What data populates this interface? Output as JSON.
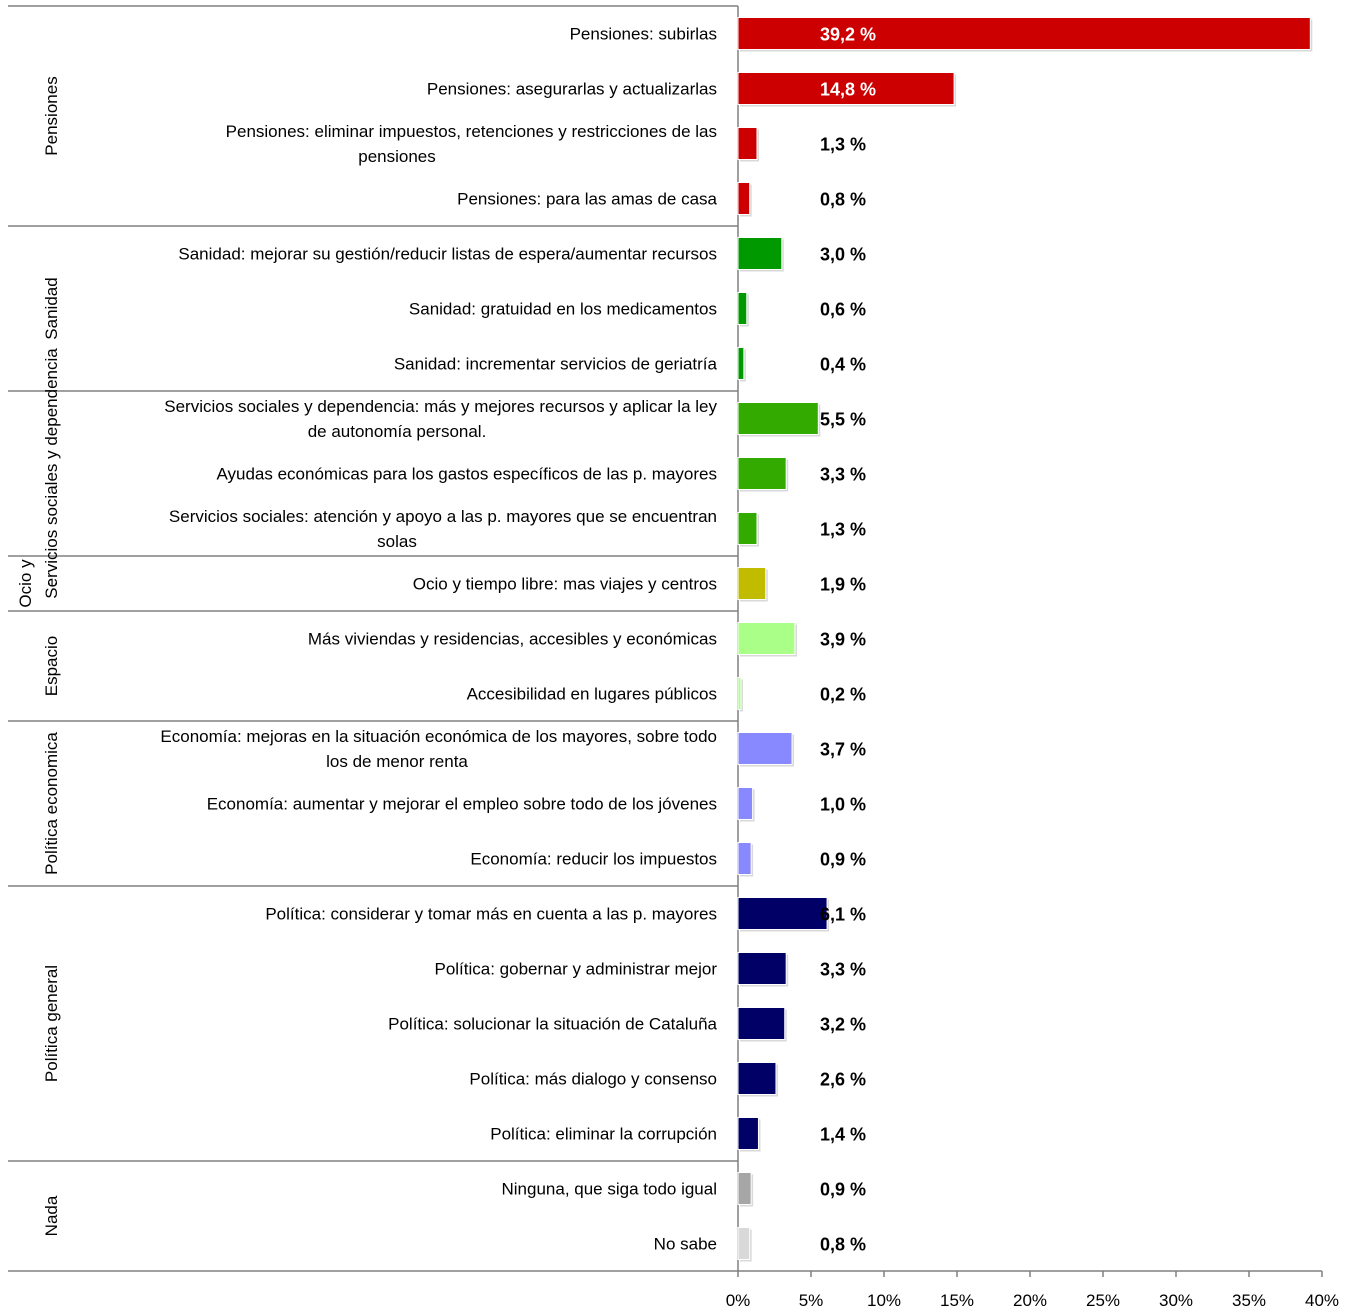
{
  "chart_data": {
    "type": "bar",
    "orientation": "horizontal",
    "xlim": [
      0,
      40
    ],
    "x_ticks": [
      "0%",
      "5%",
      "10%",
      "15%",
      "20%",
      "25%",
      "30%",
      "35%",
      "40%"
    ],
    "grid": false,
    "legend": "none",
    "groups": [
      {
        "name": "Pensiones",
        "categories": [
          {
            "label": [
              "Pensiones: subirlas"
            ],
            "value": 39.2,
            "value_label": "39,2 %",
            "color": "#cc0000"
          },
          {
            "label": [
              "Pensiones: asegurarlas y actualizarlas"
            ],
            "value": 14.8,
            "value_label": "14,8 %",
            "color": "#cc0000"
          },
          {
            "label": [
              "Pensiones: eliminar impuestos, retenciones y restricciones de las",
              "pensiones"
            ],
            "value": 1.3,
            "value_label": "1,3 %",
            "color": "#cc0000"
          },
          {
            "label": [
              "Pensiones: para las amas de casa"
            ],
            "value": 0.8,
            "value_label": "0,8 %",
            "color": "#cc0000"
          }
        ]
      },
      {
        "name": "Sanidad",
        "categories": [
          {
            "label": [
              "Sanidad: mejorar su gestión/reducir listas de espera/aumentar recursos"
            ],
            "value": 3.0,
            "value_label": "3,0 %",
            "color": "#009900"
          },
          {
            "label": [
              "Sanidad: gratuidad en los medicamentos"
            ],
            "value": 0.6,
            "value_label": "0,6 %",
            "color": "#009900"
          },
          {
            "label": [
              "Sanidad: incrementar servicios de geriatría"
            ],
            "value": 0.4,
            "value_label": "0,4 %",
            "color": "#009900"
          }
        ]
      },
      {
        "name": "Servicios sociales y dependencia",
        "categories": [
          {
            "label": [
              "Servicios sociales y dependencia: más y mejores recursos y aplicar la ley",
              "de autonomía personal."
            ],
            "value": 5.5,
            "value_label": "5,5 %",
            "color": "#33aa00"
          },
          {
            "label": [
              "Ayudas económicas para los gastos específicos de las p. mayores"
            ],
            "value": 3.3,
            "value_label": "3,3 %",
            "color": "#33aa00"
          },
          {
            "label": [
              "Servicios sociales: atención y apoyo a las p. mayores que se encuentran",
              "solas"
            ],
            "value": 1.3,
            "value_label": "1,3 %",
            "color": "#33aa00"
          }
        ]
      },
      {
        "name": "Ocio y",
        "name2": ":",
        "categories": [
          {
            "label": [
              "Ocio y tiempo libre: mas viajes y centros"
            ],
            "value": 1.9,
            "value_label": "1,9 %",
            "color": "#c2bc00"
          }
        ]
      },
      {
        "name": "Espacio",
        "categories": [
          {
            "label": [
              "Más viviendas y residencias, accesibles y económicas"
            ],
            "value": 3.9,
            "value_label": "3,9 %",
            "color": "#aaff88"
          },
          {
            "label": [
              "Accesibilidad en lugares públicos"
            ],
            "value": 0.2,
            "value_label": "0,2 %",
            "color": "#aaff88"
          }
        ]
      },
      {
        "name": "Política economica",
        "categories": [
          {
            "label": [
              "Economía: mejoras en la situación económica de los mayores, sobre todo",
              "los de menor renta"
            ],
            "value": 3.7,
            "value_label": "3,7 %",
            "color": "#8888ff"
          },
          {
            "label": [
              "Economía: aumentar y mejorar el empleo sobre todo de los jóvenes"
            ],
            "value": 1.0,
            "value_label": "1,0 %",
            "color": "#8888ff"
          },
          {
            "label": [
              "Economía: reducir los impuestos"
            ],
            "value": 0.9,
            "value_label": "0,9 %",
            "color": "#8888ff"
          }
        ]
      },
      {
        "name": "Política general",
        "categories": [
          {
            "label": [
              "Política: considerar y tomar más en cuenta a las p. mayores"
            ],
            "value": 6.1,
            "value_label": "6,1 %",
            "color": "#000066"
          },
          {
            "label": [
              "Política: gobernar y administrar mejor"
            ],
            "value": 3.3,
            "value_label": "3,3 %",
            "color": "#000066"
          },
          {
            "label": [
              "Política: solucionar la situación de Cataluña"
            ],
            "value": 3.2,
            "value_label": "3,2 %",
            "color": "#000066"
          },
          {
            "label": [
              "Política: más dialogo y consenso"
            ],
            "value": 2.6,
            "value_label": "2,6 %",
            "color": "#000066"
          },
          {
            "label": [
              "Política: eliminar la corrupción"
            ],
            "value": 1.4,
            "value_label": "1,4 %",
            "color": "#000066"
          }
        ]
      },
      {
        "name": "Nada",
        "categories": [
          {
            "label": [
              "Ninguna, que siga todo igual"
            ],
            "value": 0.9,
            "value_label": "0,9 %",
            "color": "#a6a6a6"
          },
          {
            "label": [
              "No sabe"
            ],
            "value": 0.8,
            "value_label": "0,8 %",
            "color": "#d9d9d9"
          }
        ]
      }
    ]
  }
}
